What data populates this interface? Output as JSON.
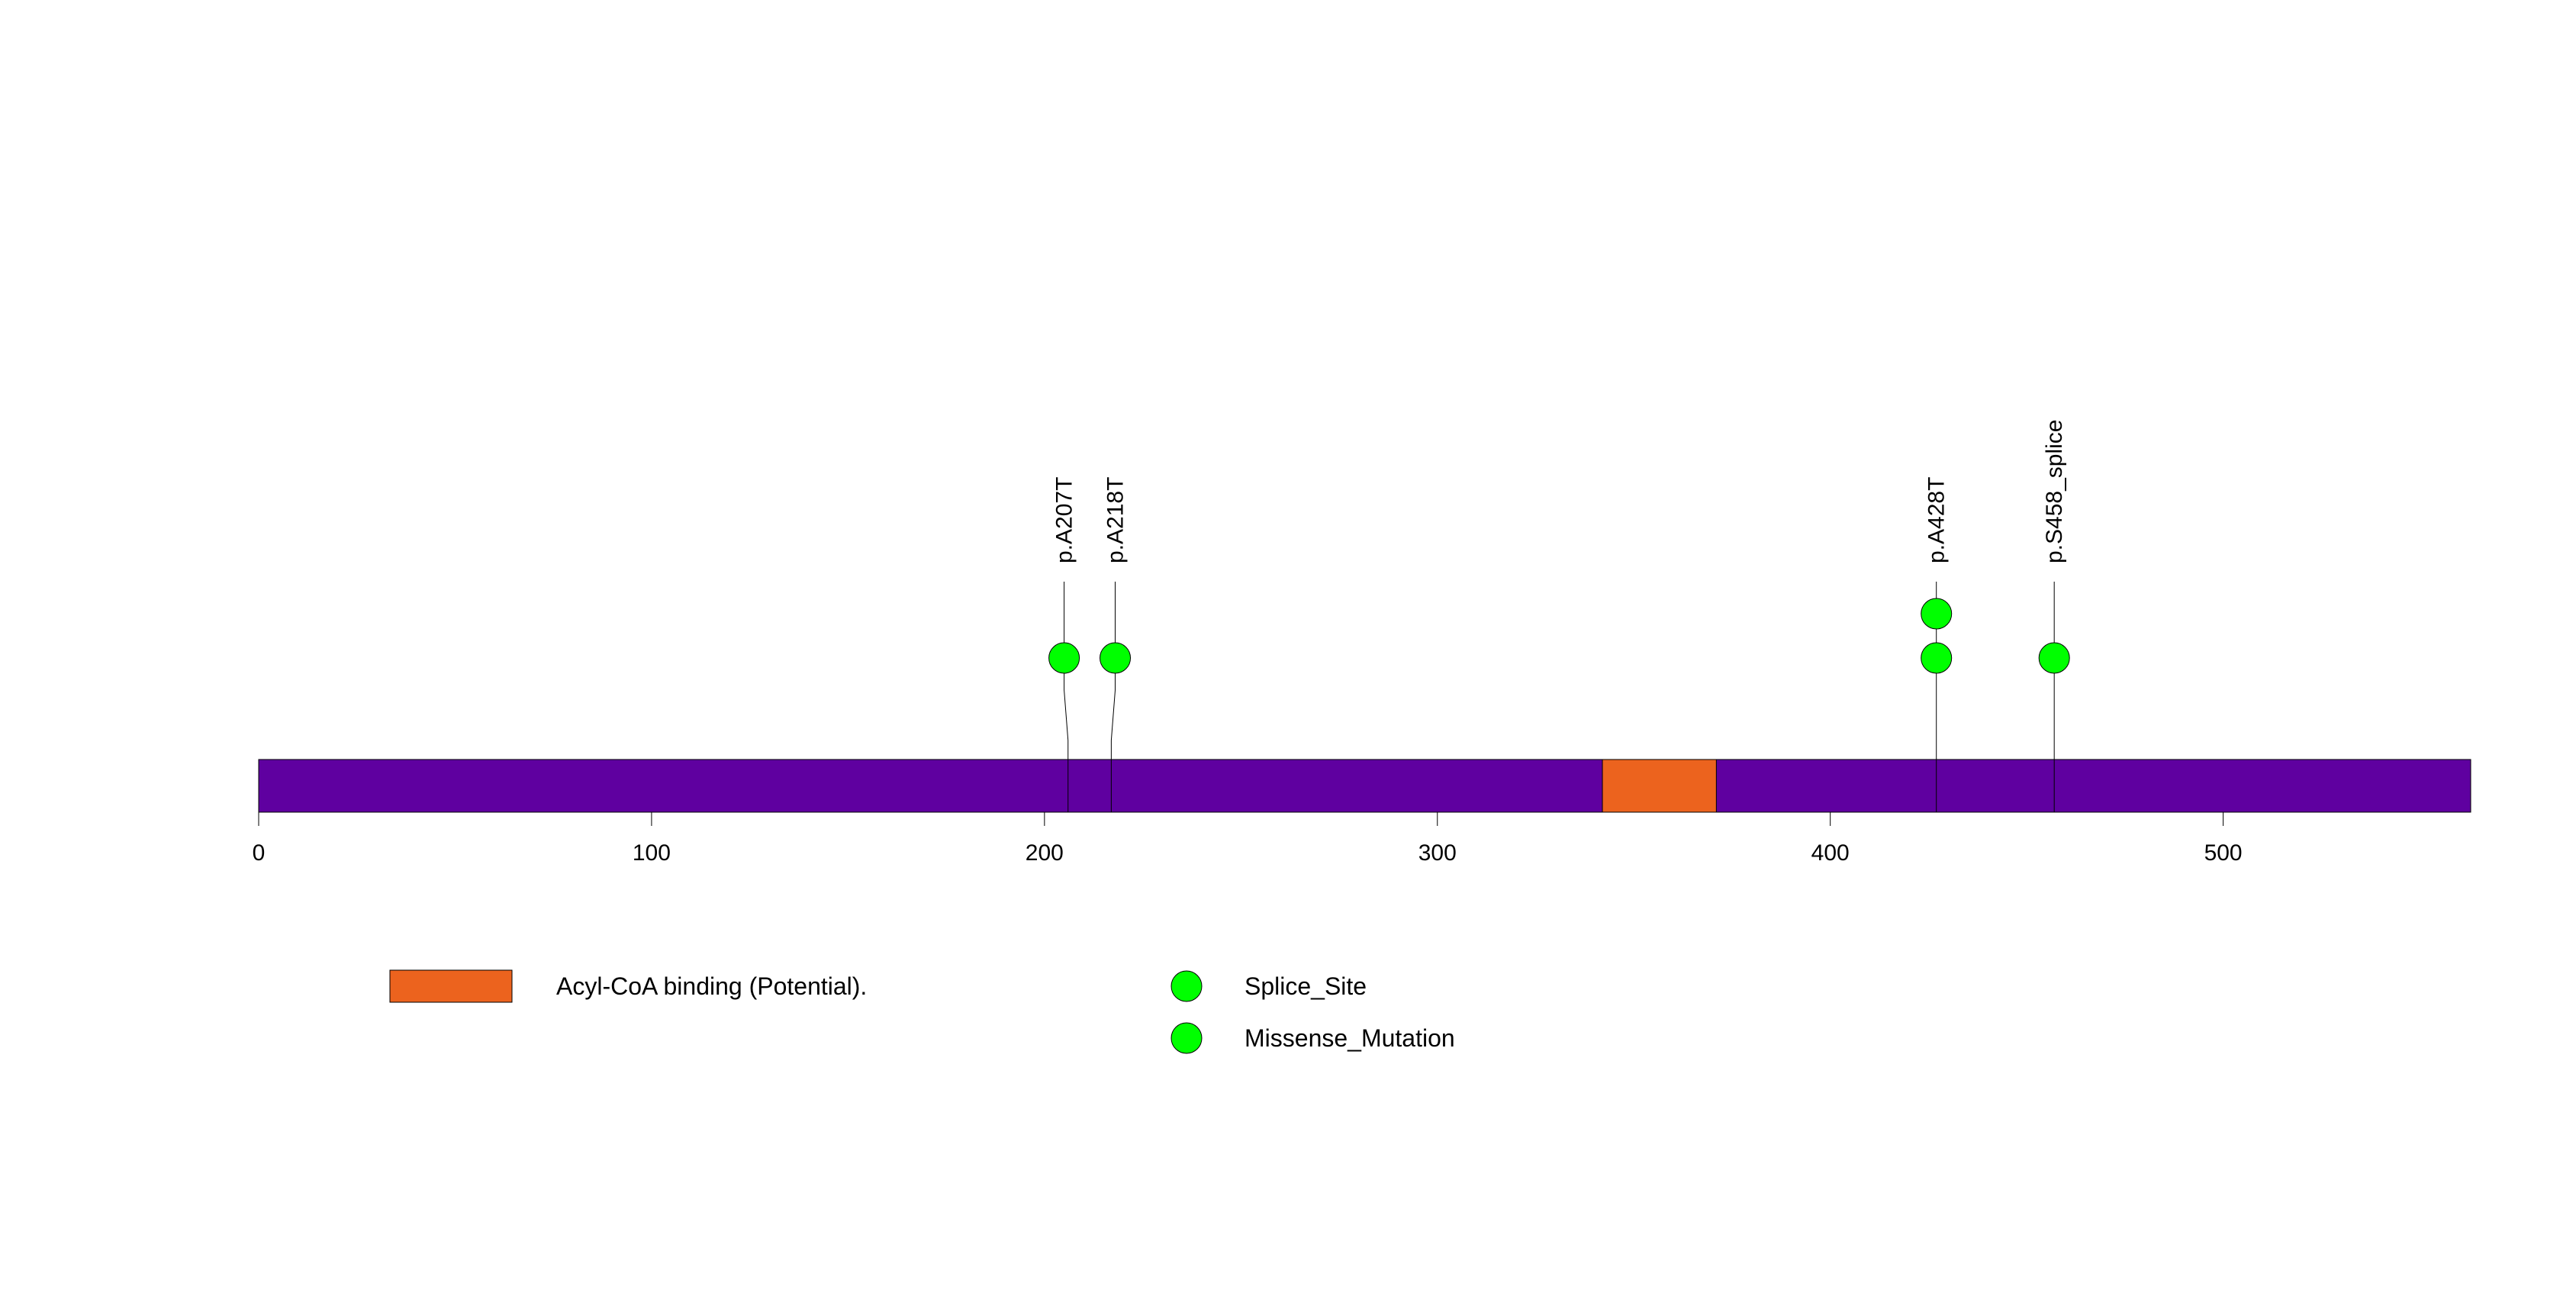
{
  "chart_data": {
    "type": "lollipop",
    "protein_length": 563,
    "axis": {
      "min": 0,
      "max": 563,
      "ticks": [
        0,
        100,
        200,
        300,
        400,
        500
      ],
      "tick_labels": [
        "0",
        "100",
        "200",
        "300",
        "400",
        "500"
      ]
    },
    "colors": {
      "protein": "#5f00a0",
      "domain": "#ec631e",
      "mutation": "#00ff00",
      "line": "#000000"
    },
    "domains": [
      {
        "name": "Acyl-CoA binding (Potential).",
        "start": 342,
        "end": 371,
        "color": "#ec631e"
      }
    ],
    "mutations": [
      {
        "label": "p.A207T",
        "position": 206,
        "label_position": 205,
        "count": 1
      },
      {
        "label": "p.A218T",
        "position": 217,
        "label_position": 218,
        "count": 1
      },
      {
        "label": "p.A428T",
        "position": 427,
        "label_position": 427,
        "count": 2
      },
      {
        "label": "p.S458_splice",
        "position": 457,
        "label_position": 457,
        "count": 1
      }
    ],
    "legend": {
      "domains": [
        {
          "label": "Acyl-CoA binding (Potential).",
          "color": "#ec631e"
        }
      ],
      "mutation_types": [
        {
          "label": "Splice_Site",
          "color": "#00ff00"
        },
        {
          "label": "Missense_Mutation",
          "color": "#00ff00"
        }
      ]
    }
  }
}
